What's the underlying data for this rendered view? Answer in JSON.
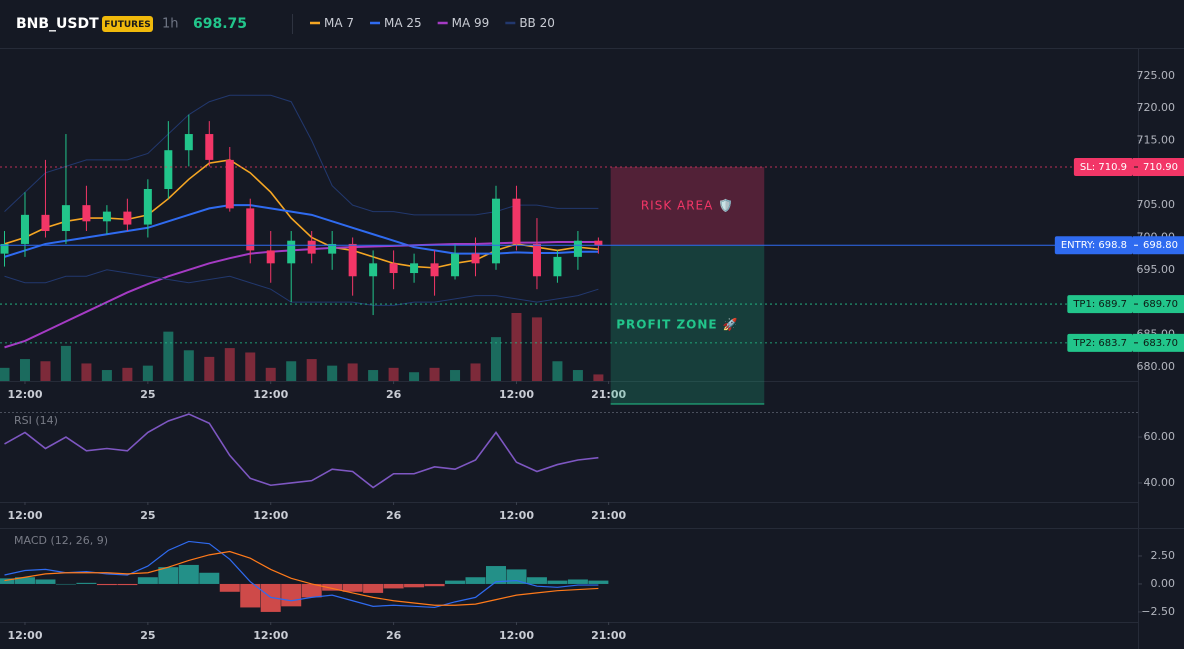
{
  "header": {
    "symbol": "BNB_USDT",
    "badge": "FUTURES",
    "interval": "1h",
    "price": "698.75"
  },
  "chart_data": [
    {
      "type": "candlestick",
      "up_color": "#22c58b",
      "down_color": "#f23667",
      "volume_up_color": "#1b6b5e",
      "volume_down_color": "#7d2a3a",
      "x": [
        -2,
        0,
        2,
        4,
        6,
        8,
        10,
        12,
        14,
        16,
        18,
        20,
        22,
        24,
        26,
        28,
        30,
        32,
        34,
        36,
        38,
        40,
        42,
        44,
        46,
        48,
        50,
        52,
        54,
        56
      ],
      "open": [
        697.5,
        699,
        703.5,
        701,
        705,
        702.5,
        704,
        702,
        707.5,
        713.5,
        716,
        712,
        704.5,
        698,
        696,
        699.5,
        697.5,
        699,
        694,
        696,
        694.5,
        696,
        694,
        697.5,
        696,
        706,
        699,
        694,
        697,
        699.5
      ],
      "high": [
        701,
        707,
        712,
        716,
        708,
        705,
        706,
        709,
        718,
        719,
        718,
        714,
        706,
        701,
        701,
        701,
        701,
        700,
        698,
        698,
        697.5,
        698,
        699,
        700,
        708,
        708,
        703,
        698,
        701,
        700
      ],
      "low": [
        695.5,
        697,
        700,
        699,
        701,
        700.5,
        701,
        700,
        706,
        711,
        711,
        704,
        696,
        693,
        690,
        696,
        695,
        691,
        688,
        692,
        693,
        691,
        693.5,
        694,
        695,
        698,
        692,
        693,
        695,
        697.5
      ],
      "close": [
        699,
        703.5,
        701,
        705,
        702.5,
        704,
        702,
        707.5,
        713.5,
        716,
        712,
        704.5,
        698,
        696,
        699.5,
        697.5,
        699,
        694,
        696,
        694.5,
        696,
        694,
        697.5,
        696,
        706,
        699,
        694,
        697,
        699.5,
        698.75
      ],
      "volume": [
        12,
        20,
        18,
        32,
        16,
        10,
        12,
        14,
        45,
        28,
        22,
        30,
        26,
        12,
        18,
        20,
        14,
        16,
        10,
        12,
        8,
        12,
        10,
        16,
        40,
        62,
        58,
        18,
        10,
        6
      ],
      "series": [
        {
          "name": "MA 7",
          "color": "#f5a623",
          "values": [
            699,
            700,
            701.5,
            702.5,
            703,
            703,
            702.8,
            703.5,
            706,
            709,
            711.5,
            712,
            710,
            707,
            703,
            700,
            698.5,
            698,
            697,
            696,
            695.5,
            695.3,
            696,
            696.5,
            698,
            699,
            698.5,
            698,
            698.5,
            698.2
          ]
        },
        {
          "name": "MA 25",
          "color": "#2f6bf0",
          "values": [
            697,
            698,
            699,
            699.5,
            700,
            700.5,
            701,
            701.5,
            702.5,
            703.5,
            704.5,
            705,
            705,
            704.5,
            704,
            703.5,
            702.5,
            701.5,
            700.5,
            699.5,
            698.5,
            698,
            697.5,
            697.5,
            697.5,
            697.7,
            697.6,
            697.6,
            697.8,
            697.8
          ]
        },
        {
          "name": "MA 99",
          "color": "#a53bc4",
          "values": [
            683,
            684,
            685.5,
            687,
            688.5,
            690,
            691.5,
            692.8,
            694,
            695,
            696,
            696.8,
            697.5,
            697.8,
            698,
            698.2,
            698.4,
            698.5,
            698.6,
            698.7,
            698.8,
            698.9,
            699,
            699,
            699.1,
            699.2,
            699.2,
            699.3,
            699.3,
            699.3
          ]
        },
        {
          "name": "BB 20",
          "color": "#22386e",
          "upper": [
            704,
            707,
            710,
            711,
            712,
            712,
            712,
            713,
            716,
            719,
            721,
            722,
            722,
            722,
            721,
            715,
            708,
            705,
            704,
            704,
            703.5,
            703.5,
            703.5,
            703.5,
            704,
            705,
            705,
            704.5,
            704.5,
            704.5
          ],
          "lower": [
            694,
            693,
            693,
            694,
            694,
            695,
            694.5,
            694,
            693.5,
            693,
            693.5,
            694,
            693,
            692,
            690,
            690,
            690,
            690,
            689.5,
            689.5,
            690,
            690,
            690.5,
            691,
            691,
            690.5,
            690,
            690.5,
            691,
            692
          ]
        }
      ],
      "levels": [
        {
          "name": "SL: 710.9",
          "value": 710.9,
          "value_label": "710.90",
          "color": "#f23667"
        },
        {
          "name": "ENTRY: 698.8",
          "value": 698.8,
          "value_label": "698.80",
          "color": "#2f6bf0"
        },
        {
          "name": "TP1: 689.7",
          "value": 689.7,
          "value_label": "689.70",
          "color": "#22c58b"
        },
        {
          "name": "TP2: 683.7",
          "value": 683.7,
          "value_label": "683.70",
          "color": "#22c58b"
        }
      ],
      "zones": [
        {
          "label": "RISK AREA 🛡️",
          "color": "#f23667"
        },
        {
          "label": "PROFIT ZONE 🚀",
          "color": "#22c58b"
        }
      ],
      "xlim": [
        -2.44,
        108.7
      ],
      "xticks": [
        {
          "value": 0,
          "label": "12:00"
        },
        {
          "value": 12,
          "label": "25"
        },
        {
          "value": 24,
          "label": "12:00"
        },
        {
          "value": 36,
          "label": "26"
        },
        {
          "value": 48,
          "label": "12:00"
        },
        {
          "value": 57,
          "label": "21:00"
        }
      ],
      "ylim": [
        677.8,
        729
      ],
      "yticks": [
        {
          "value": 680,
          "label": "680.00"
        },
        {
          "value": 685,
          "label": "685.00"
        },
        {
          "value": 690,
          "label": "690.00"
        },
        {
          "value": 695,
          "label": "695.00"
        },
        {
          "value": 700,
          "label": "700.00"
        },
        {
          "value": 705,
          "label": "705.00"
        },
        {
          "value": 710,
          "label": "710.00"
        },
        {
          "value": 715,
          "label": "715.00"
        },
        {
          "value": 720,
          "label": "720.00"
        },
        {
          "value": 725,
          "label": "725.00"
        }
      ]
    },
    {
      "type": "line",
      "title": "RSI (14)",
      "color": "#7e57c2",
      "values": [
        57,
        62,
        55,
        60,
        54,
        55,
        54,
        62,
        67,
        70,
        66,
        52,
        42,
        39,
        40,
        41,
        46,
        45,
        38,
        44,
        44,
        47,
        46,
        50,
        62,
        49,
        45,
        48,
        50,
        51
      ],
      "xlim": [
        -2.44,
        108.7
      ],
      "xticks": [
        {
          "value": 0,
          "label": "12:00"
        },
        {
          "value": 12,
          "label": "25"
        },
        {
          "value": 24,
          "label": "12:00"
        },
        {
          "value": 36,
          "label": "26"
        },
        {
          "value": 48,
          "label": "12:00"
        },
        {
          "value": 57,
          "label": "21:00"
        }
      ],
      "ylim": [
        31.7,
        70.9
      ],
      "yticks": [
        {
          "value": 40,
          "label": "40.00"
        },
        {
          "value": 60,
          "label": "60.00"
        }
      ]
    },
    {
      "type": "macd",
      "title": "MACD (12, 26, 9)",
      "up_color": "#26a69a",
      "down_color": "#ef5350",
      "series": [
        {
          "color": "#2f6bf0",
          "values": [
            0.8,
            1.2,
            1.3,
            1.0,
            1.1,
            0.9,
            0.8,
            1.6,
            3.0,
            3.8,
            3.6,
            2.2,
            0.2,
            -1.2,
            -1.5,
            -1.2,
            -1.0,
            -1.5,
            -2.0,
            -1.9,
            -2.0,
            -2.1,
            -1.6,
            -1.2,
            0.2,
            0.3,
            -0.2,
            -0.3,
            -0.1,
            -0.1
          ]
        },
        {
          "color": "#ff7a1a",
          "values": [
            0.3,
            0.6,
            0.9,
            1.0,
            1.0,
            1.0,
            0.9,
            1.0,
            1.5,
            2.1,
            2.6,
            2.9,
            2.3,
            1.3,
            0.5,
            0,
            -0.4,
            -0.8,
            -1.2,
            -1.5,
            -1.7,
            -1.9,
            -1.9,
            -1.8,
            -1.4,
            -1.0,
            -0.8,
            -0.6,
            -0.5,
            -0.4
          ]
        }
      ],
      "histogram": [
        0.5,
        0.6,
        0.4,
        0,
        0.1,
        -0.1,
        -0.1,
        0.6,
        1.5,
        1.7,
        1.0,
        -0.7,
        -2.1,
        -2.5,
        -2.0,
        -1.2,
        -0.6,
        -0.7,
        -0.8,
        -0.4,
        -0.3,
        -0.2,
        0.3,
        0.6,
        1.6,
        1.3,
        0.6,
        0.3,
        0.4,
        0.3
      ],
      "xlim": [
        -2.44,
        108.7
      ],
      "xticks": [
        {
          "value": 0,
          "label": "12:00"
        },
        {
          "value": 12,
          "label": "25"
        },
        {
          "value": 24,
          "label": "12:00"
        },
        {
          "value": 36,
          "label": "26"
        },
        {
          "value": 48,
          "label": "12:00"
        },
        {
          "value": 57,
          "label": "21:00"
        }
      ],
      "ylim": [
        -3.4,
        5.0
      ],
      "yticks": [
        {
          "value": -2.5,
          "label": "−2.50"
        },
        {
          "value": 0,
          "label": "0.00"
        },
        {
          "value": 2.5,
          "label": "2.50"
        }
      ]
    }
  ]
}
